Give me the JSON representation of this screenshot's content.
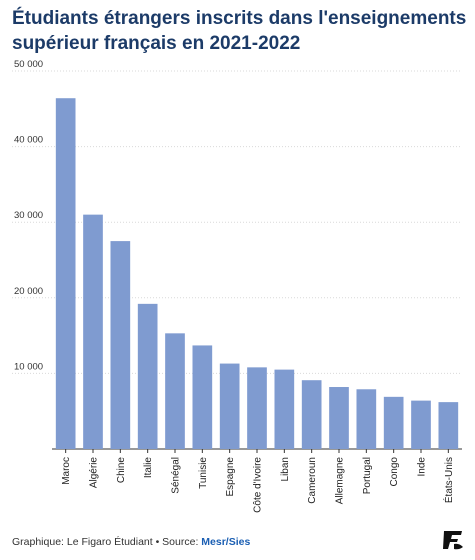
{
  "title": "Étudiants étrangers inscrits dans l'enseignements supérieur français en 2021-2022",
  "footer": {
    "credit": "Graphique: Le Figaro Étudiant • Source: ",
    "source": "Mesr/Sies"
  },
  "logo_icon": "figaro-logo-icon",
  "colors": {
    "bar": "#7f9bd0",
    "title": "#1c3b68",
    "grid": "#d9d9d9",
    "source_link": "#1b5fb3"
  },
  "chart_data": {
    "type": "bar",
    "title": "Étudiants étrangers inscrits dans l'enseignements supérieur français en 2021-2022",
    "xlabel": "",
    "ylabel": "",
    "categories": [
      "Maroc",
      "Algérie",
      "Chine",
      "Italie",
      "Sénégal",
      "Tunisie",
      "Espagne",
      "Côte d'Ivoire",
      "Liban",
      "Cameroun",
      "Allemagne",
      "Portugal",
      "Congo",
      "Inde",
      "États-Unis"
    ],
    "values": [
      46400,
      31000,
      27500,
      19200,
      15300,
      13700,
      11300,
      10800,
      10500,
      9100,
      8200,
      7900,
      6900,
      6400,
      6200
    ],
    "ylim": [
      0,
      50000
    ],
    "yticks": [
      0,
      10000,
      20000,
      30000,
      40000,
      50000
    ],
    "ytick_labels": [
      "",
      "10 000",
      "20 000",
      "30 000",
      "40 000",
      "50 000"
    ],
    "grid": true,
    "legend": "none"
  }
}
